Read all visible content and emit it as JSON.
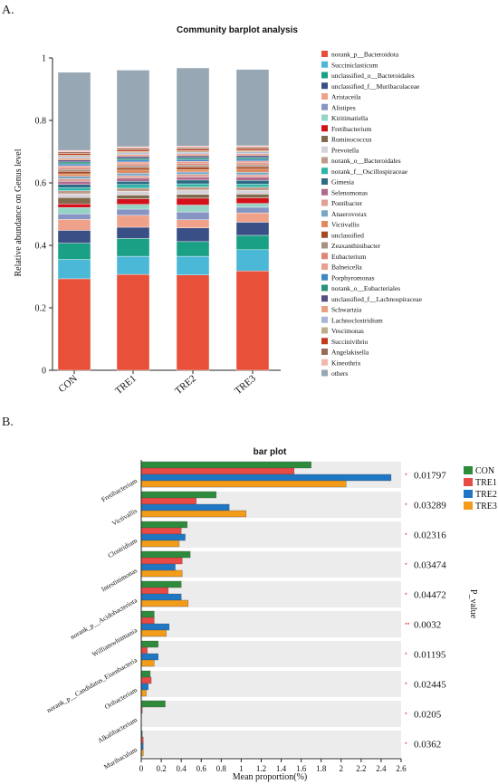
{
  "panel_a_label": "A.",
  "panel_b_label": "B.",
  "chart_data": [
    {
      "type": "bar",
      "stacked": true,
      "title": "Community barplot analysis",
      "ylabel": "Relative abundance on Genus level",
      "xlabel": "",
      "ylim": [
        0,
        1
      ],
      "yticks": [
        "0",
        "0.2",
        "0.4",
        "0.6",
        "0.8",
        "1"
      ],
      "categories": [
        "CON",
        "TRE1",
        "TRE2",
        "TRE3"
      ],
      "legend_position": "right",
      "series": [
        {
          "name": "norank_p__Bacteroidota",
          "color": "#e8503a",
          "values": [
            0.293,
            0.307,
            0.305,
            0.318
          ]
        },
        {
          "name": "Succiniclasticum",
          "color": "#4ab8d6",
          "values": [
            0.062,
            0.058,
            0.06,
            0.068
          ]
        },
        {
          "name": "unclassified_o__Bacteroidales",
          "color": "#1aa085",
          "values": [
            0.052,
            0.057,
            0.047,
            0.046
          ]
        },
        {
          "name": "unclassified_f__Muribaculaceae",
          "color": "#3a4f85",
          "values": [
            0.041,
            0.036,
            0.044,
            0.042
          ]
        },
        {
          "name": "Aristaceila",
          "color": "#f0a18a",
          "values": [
            0.035,
            0.038,
            0.026,
            0.03
          ]
        },
        {
          "name": "Alistipes",
          "color": "#8795c4",
          "values": [
            0.018,
            0.02,
            0.025,
            0.018
          ]
        },
        {
          "name": "Kiritimatiella",
          "color": "#96d4c6",
          "values": [
            0.02,
            0.015,
            0.022,
            0.012
          ]
        },
        {
          "name": "Fretibacterium",
          "color": "#d4101a",
          "values": [
            0.012,
            0.018,
            0.022,
            0.018
          ]
        },
        {
          "name": "Ruminococcus",
          "color": "#7f6a4d",
          "values": [
            0.02,
            0.012,
            0.012,
            0.012
          ]
        },
        {
          "name": "Prevotella",
          "color": "#d7d2da",
          "values": [
            0.012,
            0.012,
            0.014,
            0.012
          ]
        },
        {
          "name": "norank_o__Bacteroidales",
          "color": "#c09a88",
          "values": [
            0.01,
            0.01,
            0.01,
            0.01
          ]
        },
        {
          "name": "norank_f__Oscillospiraceae",
          "color": "#2fb5a8",
          "values": [
            0.01,
            0.012,
            0.01,
            0.01
          ]
        },
        {
          "name": "Gimesia",
          "color": "#2e6b86",
          "values": [
            0.01,
            0.01,
            0.012,
            0.012
          ]
        },
        {
          "name": "Selenomonas",
          "color": "#b06a8e",
          "values": [
            0.01,
            0.01,
            0.01,
            0.01
          ]
        },
        {
          "name": "Pontibacter",
          "color": "#e0a092",
          "values": [
            0.008,
            0.008,
            0.008,
            0.008
          ]
        },
        {
          "name": "Anaerovorax",
          "color": "#7aa7c7",
          "values": [
            0.008,
            0.008,
            0.008,
            0.008
          ]
        },
        {
          "name": "Victivallis",
          "color": "#e08a5e",
          "values": [
            0.008,
            0.01,
            0.008,
            0.01
          ]
        },
        {
          "name": "unclassified",
          "color": "#a54a22",
          "values": [
            0.008,
            0.008,
            0.008,
            0.008
          ]
        },
        {
          "name": "Zeaxanthinibacter",
          "color": "#a89080",
          "values": [
            0.006,
            0.006,
            0.006,
            0.006
          ]
        },
        {
          "name": "Eubacterium",
          "color": "#dd8678",
          "values": [
            0.006,
            0.006,
            0.006,
            0.006
          ]
        },
        {
          "name": "Balneicella",
          "color": "#ea9f90",
          "values": [
            0.006,
            0.006,
            0.006,
            0.006
          ]
        },
        {
          "name": "Porphyromonas",
          "color": "#3f86c6",
          "values": [
            0.006,
            0.006,
            0.006,
            0.006
          ]
        },
        {
          "name": "norank_o__Eubacteriales",
          "color": "#28917a",
          "values": [
            0.006,
            0.006,
            0.006,
            0.006
          ]
        },
        {
          "name": "unclassified_f__Lachnospiraceae",
          "color": "#5a4d86",
          "values": [
            0.006,
            0.006,
            0.006,
            0.006
          ]
        },
        {
          "name": "Schwartzia",
          "color": "#e8a080",
          "values": [
            0.006,
            0.006,
            0.006,
            0.006
          ]
        },
        {
          "name": "Lachnoclostridium",
          "color": "#a8b5d6",
          "values": [
            0.005,
            0.005,
            0.005,
            0.005
          ]
        },
        {
          "name": "Vescimonas",
          "color": "#bfae8c",
          "values": [
            0.005,
            0.005,
            0.005,
            0.005
          ]
        },
        {
          "name": "Succinivibrio",
          "color": "#c23a1a",
          "values": [
            0.005,
            0.005,
            0.005,
            0.005
          ]
        },
        {
          "name": "Angelakisella",
          "color": "#9a6a55",
          "values": [
            0.005,
            0.005,
            0.005,
            0.005
          ]
        },
        {
          "name": "Kineothrix",
          "color": "#f2b8b0",
          "values": [
            0.005,
            0.005,
            0.005,
            0.005
          ]
        },
        {
          "name": "others",
          "color": "#97a7b3",
          "values": [
            0.25,
            0.245,
            0.25,
            0.244
          ]
        }
      ]
    },
    {
      "type": "bar",
      "orientation": "horizontal",
      "title": "bar plot",
      "xlabel": "Mean proportion(%)",
      "ylabel": "",
      "xlim": [
        0,
        2.6
      ],
      "xticks": [
        "0",
        "0.2",
        "0.4",
        "0.6",
        "0.8",
        "1",
        "1.2",
        "1.4",
        "1.6",
        "1.8",
        "2",
        "2.2",
        "2.4",
        "2.6"
      ],
      "right_axis_label": "P_value",
      "legend_position": "top-right",
      "categories": [
        "Fretibacterium",
        "Victivallis",
        "Clostridium",
        "Intestinimonas",
        "norank_p__Acidobacteriota",
        "Williamwhitmania",
        "norank_p__Candidatus_Eisenbacteria",
        "Oribacterium",
        "Alkalibacterium",
        "Muribaculum"
      ],
      "p_values": [
        "0.01797",
        "0.03289",
        "0.02316",
        "0.03474",
        "0.04472",
        "0.0032",
        "0.01195",
        "0.02445",
        "0.0205",
        "0.0362"
      ],
      "significance": [
        "*",
        "*",
        "*",
        "*",
        "*",
        "**",
        "*",
        "*",
        "*",
        "*"
      ],
      "series": [
        {
          "name": "CON",
          "color": "#2e8b3c",
          "values": [
            1.7,
            0.75,
            0.46,
            0.49,
            0.4,
            0.13,
            0.17,
            0.09,
            0.24,
            0.01
          ]
        },
        {
          "name": "TRE1",
          "color": "#e84a45",
          "values": [
            1.53,
            0.55,
            0.4,
            0.41,
            0.27,
            0.13,
            0.06,
            0.1,
            0.01,
            0.02
          ]
        },
        {
          "name": "TRE2",
          "color": "#1f77c4",
          "values": [
            2.5,
            0.88,
            0.44,
            0.34,
            0.4,
            0.28,
            0.17,
            0.07,
            0.0,
            0.02
          ]
        },
        {
          "name": "TRE3",
          "color": "#f39c1a",
          "values": [
            2.05,
            1.05,
            0.38,
            0.41,
            0.47,
            0.25,
            0.13,
            0.05,
            0.0,
            0.02
          ]
        }
      ]
    }
  ]
}
